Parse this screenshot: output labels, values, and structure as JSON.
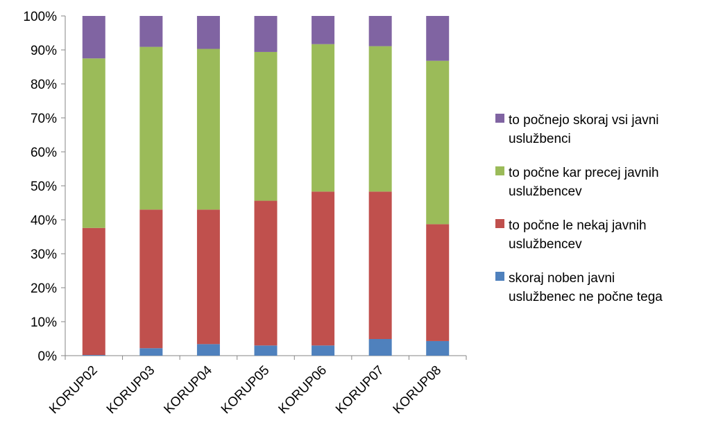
{
  "chart_data": {
    "type": "bar",
    "stacked": true,
    "percent": true,
    "categories": [
      "KORUP02",
      "KORUP03",
      "KORUP04",
      "KORUP05",
      "KORUP06",
      "KORUP07",
      "KORUP08"
    ],
    "series": [
      {
        "name": "skoraj noben javni uslužbenec ne počne tega",
        "color": "#4F81BD",
        "values": [
          0.2,
          2.2,
          3.4,
          3.0,
          3.0,
          4.9,
          4.3
        ]
      },
      {
        "name": "to počne le nekaj javnih uslužbencev",
        "color": "#C0504D",
        "values": [
          37.4,
          40.8,
          39.6,
          42.6,
          45.3,
          43.4,
          34.4
        ]
      },
      {
        "name": "to počne kar precej javnih uslužbencev",
        "color": "#9BBB59",
        "values": [
          49.9,
          47.9,
          47.3,
          43.8,
          43.4,
          42.8,
          48.1
        ]
      },
      {
        "name": "to počnejo skoraj vsi javni uslužbenci",
        "color": "#8064A2",
        "values": [
          12.5,
          9.1,
          9.7,
          10.6,
          8.3,
          8.9,
          13.2
        ]
      }
    ],
    "y_ticks": [
      "0%",
      "10%",
      "20%",
      "30%",
      "40%",
      "50%",
      "60%",
      "70%",
      "80%",
      "90%",
      "100%"
    ],
    "ylim": [
      0,
      100
    ],
    "grid": false,
    "legend_position": "right",
    "legend_order": [
      3,
      2,
      1,
      0
    ],
    "legend_lines": [
      [
        "to počnejo skoraj vsi javni",
        "uslužbenci"
      ],
      [
        "to počne kar precej javnih",
        "uslužbencev"
      ],
      [
        "to počne le nekaj javnih",
        "uslužbencev"
      ],
      [
        "skoraj noben javni",
        "uslužbenec ne počne tega"
      ]
    ]
  }
}
